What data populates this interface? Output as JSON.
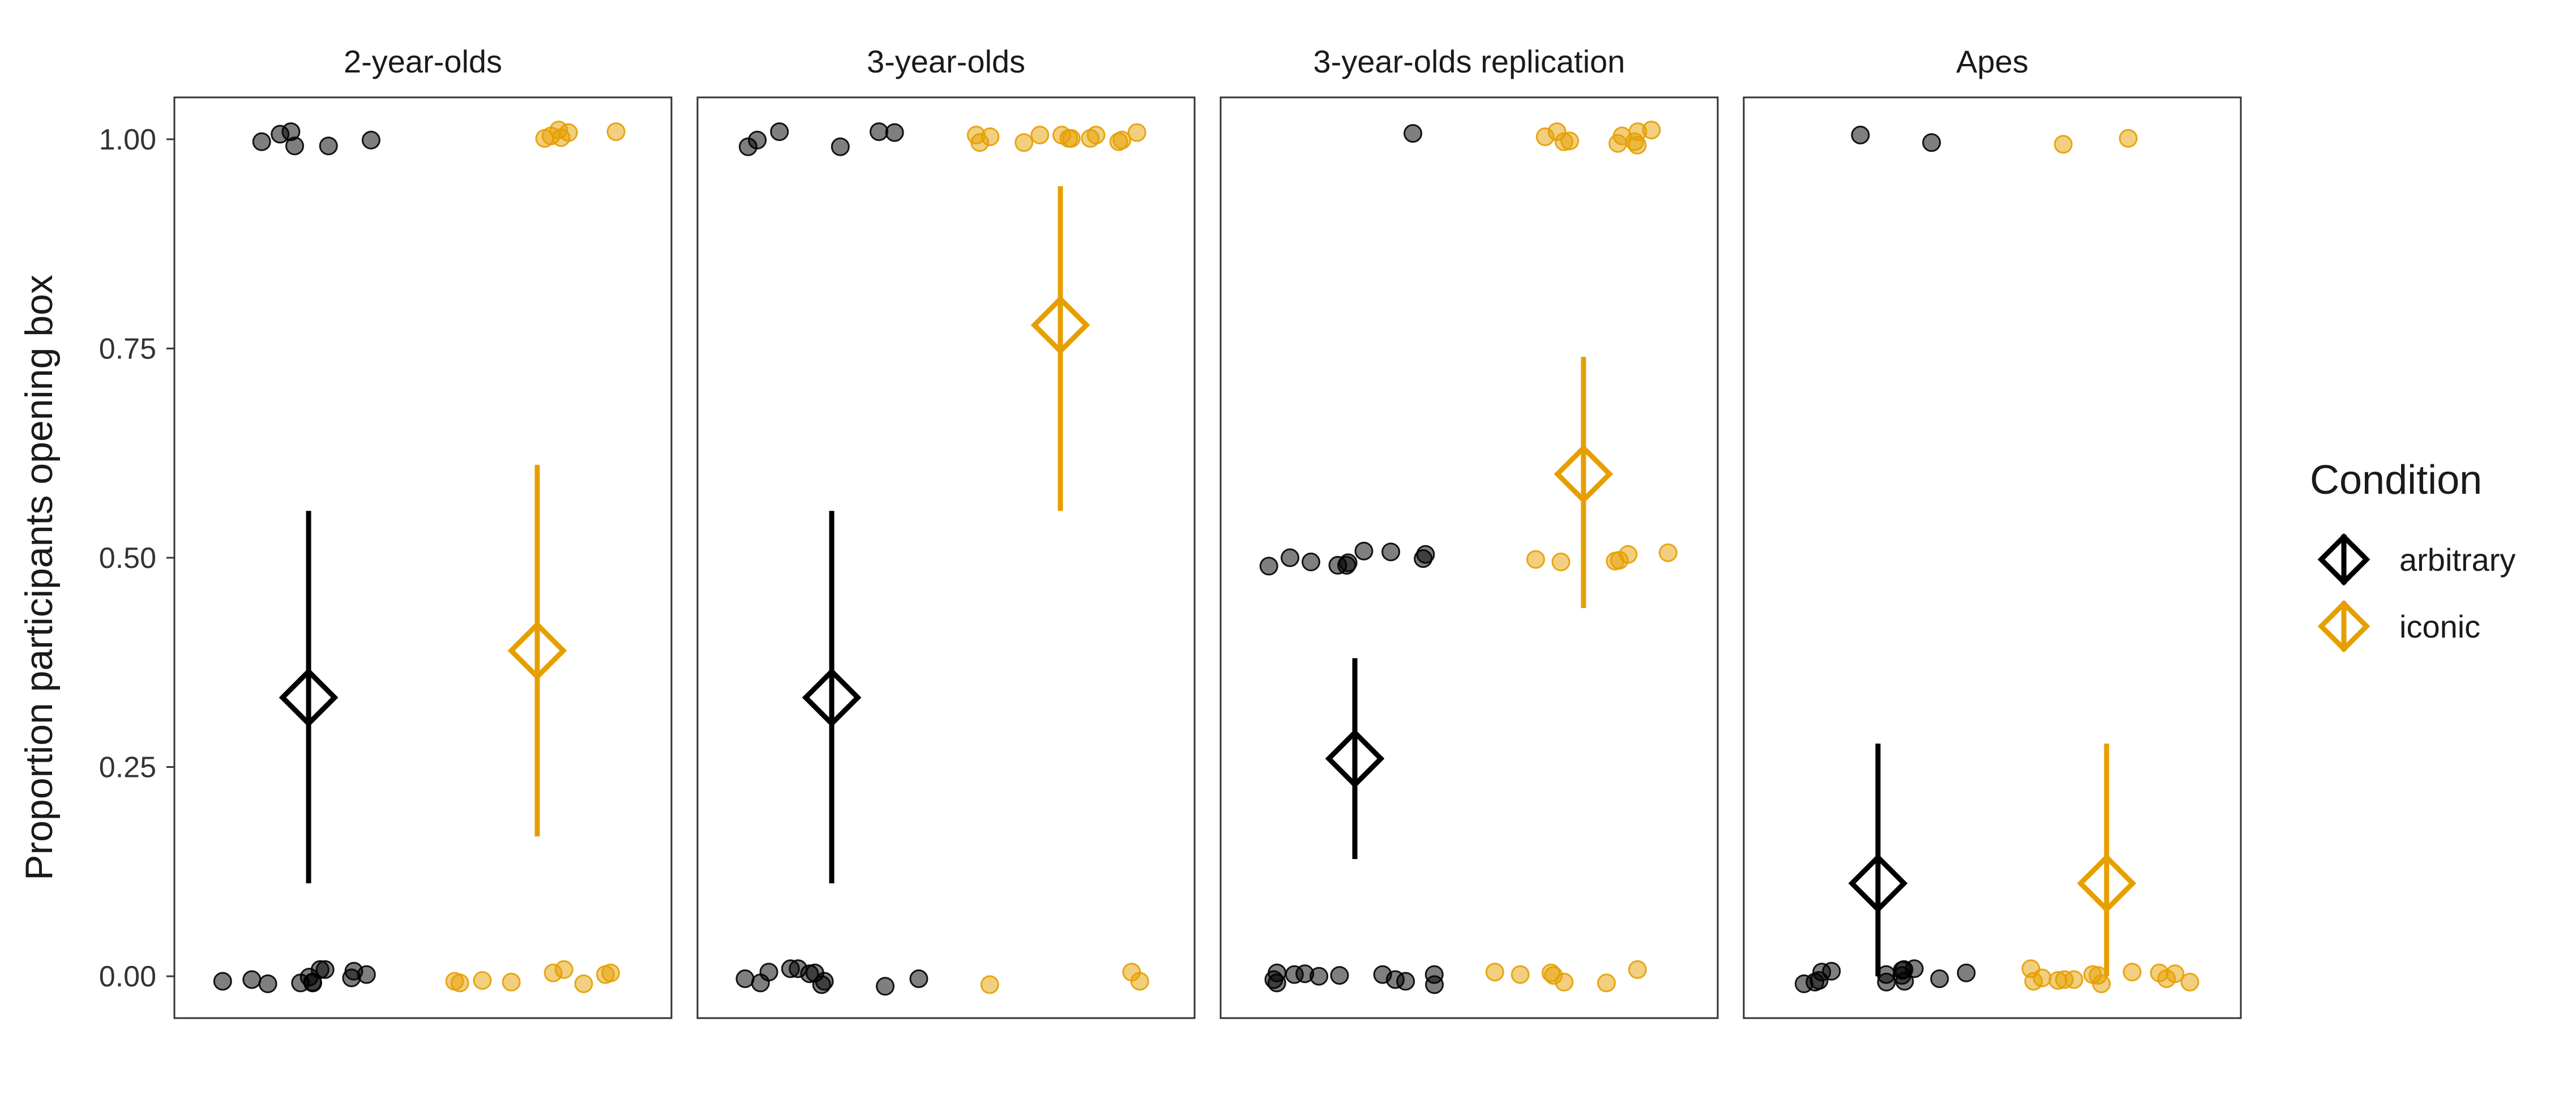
{
  "chart_data": {
    "type": "scatter",
    "ylabel": "Proportion participants opening box",
    "xlabel": "",
    "ylim": [
      -0.05,
      1.05
    ],
    "y_ticks": [
      0.0,
      0.25,
      0.5,
      0.75,
      1.0
    ],
    "y_tick_labels": [
      "0.00",
      "0.25",
      "0.50",
      "0.75",
      "1.00"
    ],
    "grid": false,
    "legend": {
      "title": "Condition",
      "placement": "right",
      "items": [
        {
          "label": "arbitrary",
          "color": "#000000"
        },
        {
          "label": "iconic",
          "color": "#E69F00"
        }
      ]
    },
    "panels": [
      {
        "title": "2-year-olds",
        "summary": [
          {
            "condition": "arbitrary",
            "mean": 0.333,
            "lower": 0.111,
            "upper": 0.556
          },
          {
            "condition": "iconic",
            "mean": 0.389,
            "lower": 0.167,
            "upper": 0.611
          }
        ],
        "points": [
          {
            "condition": "arbitrary",
            "values": [
              -0.004,
              -0.002,
              0.008,
              -0.008,
              -0.009,
              0.002,
              0.006,
              -0.001,
              -0.008,
              -0.007,
              -0.006,
              0.008,
              0.992,
              1.009,
              0.999,
              1.006,
              0.992,
              0.997
            ]
          },
          {
            "condition": "iconic",
            "values": [
              0.004,
              -0.006,
              -0.007,
              0.002,
              -0.005,
              0.004,
              0.008,
              -0.009,
              -0.008,
              1.008,
              1.009,
              1.004,
              1.001,
              1.002,
              1.011
            ]
          }
        ]
      },
      {
        "title": "3-year-olds",
        "summary": [
          {
            "condition": "arbitrary",
            "mean": 0.333,
            "lower": 0.111,
            "upper": 0.556
          },
          {
            "condition": "iconic",
            "mean": 0.778,
            "lower": 0.556,
            "upper": 0.944
          }
        ],
        "points": [
          {
            "condition": "arbitrary",
            "values": [
              0.009,
              -0.003,
              -0.008,
              -0.01,
              -0.012,
              0.004,
              0.009,
              0.005,
              0.003,
              -0.006,
              -0.003,
              1.009,
              0.991,
              1.008,
              1.009,
              0.991,
              0.999
            ]
          },
          {
            "condition": "iconic",
            "values": [
              0.005,
              -0.01,
              -0.006,
              0.996,
              0.996,
              1.005,
              0.997,
              1.005,
              1.001,
              0.999,
              1.001,
              1.003,
              1.005,
              1.005,
              1.008,
              1.001
            ]
          }
        ]
      },
      {
        "title": "3-year-olds replication",
        "summary": [
          {
            "condition": "arbitrary",
            "mean": 0.26,
            "lower": 0.14,
            "upper": 0.38
          },
          {
            "condition": "iconic",
            "mean": 0.6,
            "lower": 0.44,
            "upper": 0.74
          }
        ],
        "points": [
          {
            "condition": "arbitrary",
            "values": [
              -0.004,
              0.002,
              0.0,
              0.002,
              0.002,
              -0.004,
              0.003,
              -0.006,
              -0.01,
              0.004,
              0.001,
              -0.008,
              1.007,
              0.491,
              0.491,
              0.495,
              0.499,
              0.508,
              0.49,
              0.494,
              0.507,
              0.5,
              0.504
            ]
          },
          {
            "condition": "iconic",
            "values": [
              -0.008,
              0.001,
              0.008,
              -0.007,
              0.004,
              0.005,
              0.002,
              0.506,
              0.504,
              0.498,
              0.496,
              0.497,
              0.495,
              0.995,
              0.993,
              1.011,
              0.997,
              1.009,
              1.003,
              0.997,
              1.009,
              0.998,
              1.004
            ]
          }
        ]
      },
      {
        "title": "Apes",
        "summary": [
          {
            "condition": "arbitrary",
            "mean": 0.111,
            "lower": 0.0,
            "upper": 0.278
          },
          {
            "condition": "iconic",
            "mean": 0.111,
            "lower": 0.0,
            "upper": 0.278
          }
        ],
        "points": [
          {
            "condition": "arbitrary",
            "values": [
              0.008,
              -0.007,
              -0.005,
              0.004,
              0.009,
              -0.003,
              0.006,
              0.002,
              -0.006,
              0.007,
              -0.007,
              0.005,
              0.001,
              1.005,
              0.996,
              -0.009
            ]
          },
          {
            "condition": "iconic",
            "values": [
              0.001,
              -0.006,
              -0.009,
              0.009,
              -0.004,
              0.003,
              -0.007,
              0.004,
              0.002,
              -0.005,
              -0.004,
              -0.003,
              -0.002,
              0.005,
              1.001,
              0.994
            ]
          }
        ]
      }
    ]
  }
}
